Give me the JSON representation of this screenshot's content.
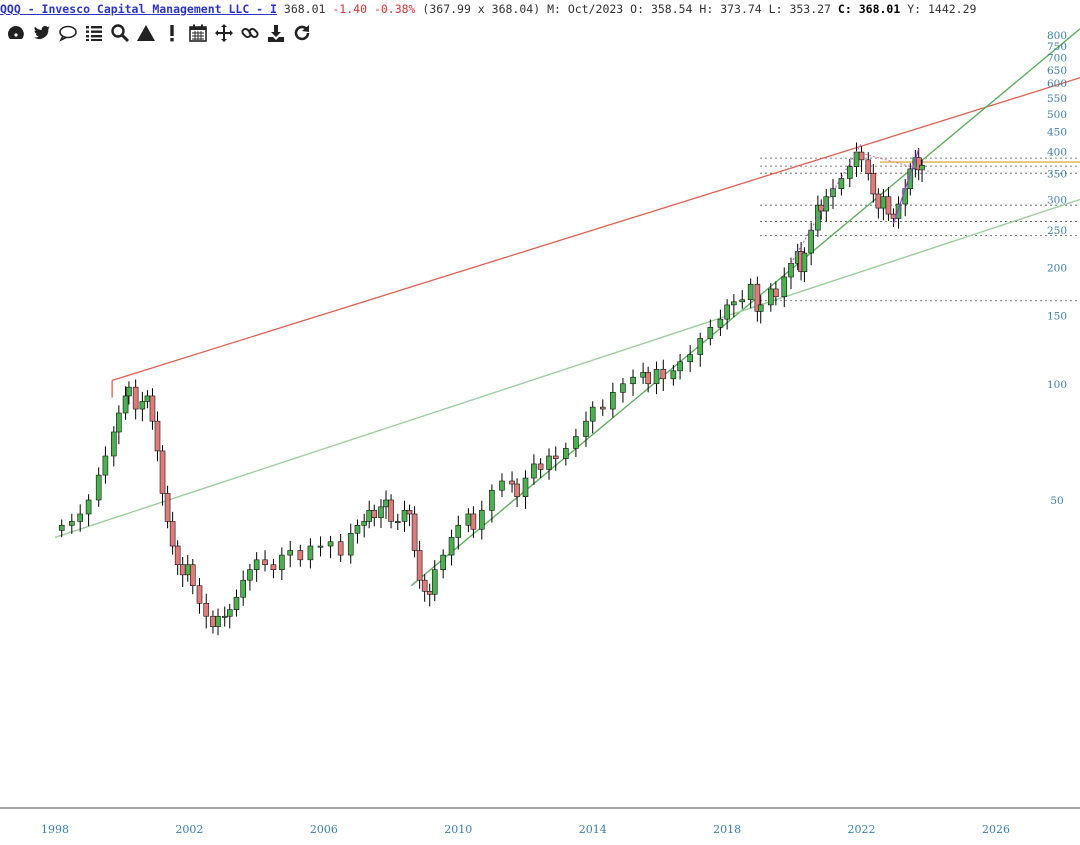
{
  "header": {
    "title": "QQQ - Invesco Capital Management LLC - I",
    "price": "368.01",
    "change": "-1.40",
    "change_pct": "-0.38%",
    "bid_ask": "(367.99 x 368.04)",
    "period": "M: Oct/2023",
    "open": "O: 358.54",
    "high": "H: 373.74",
    "low": "L: 353.27",
    "close_label": "C:",
    "close_value": "368.01",
    "yield": "Y: 1442.29"
  },
  "toolbar": {
    "icons": [
      "dashboard-icon",
      "twitter-icon",
      "comment-icon",
      "list-icon",
      "search-icon",
      "triangle-icon",
      "exclamation-icon",
      "calendar-icon",
      "move-icon",
      "link-icon",
      "download-icon",
      "refresh-icon"
    ]
  },
  "chart_data": {
    "type": "candlestick",
    "scale": "log",
    "grid": false,
    "colors": {
      "up": "#4caf50",
      "down": "#e07b7b",
      "wick": "#000000",
      "axis_labels": "#3a7fb0"
    },
    "y_ticks": [
      50,
      100,
      150,
      200,
      250,
      300,
      350,
      400,
      450,
      500,
      550,
      600,
      650,
      700,
      750,
      800
    ],
    "x_ticks": [
      1998,
      2002,
      2006,
      2010,
      2014,
      2018,
      2022,
      2026
    ],
    "xlim": [
      1998,
      2028.5
    ],
    "series": [
      {
        "name": "QQQ monthly close",
        "points": [
          [
            1998.2,
            43
          ],
          [
            1998.5,
            44
          ],
          [
            1998.75,
            46
          ],
          [
            1999.0,
            50
          ],
          [
            1999.3,
            58
          ],
          [
            1999.5,
            65
          ],
          [
            1999.75,
            75
          ],
          [
            1999.9,
            84
          ],
          [
            2000.1,
            93
          ],
          [
            2000.2,
            98
          ],
          [
            2000.4,
            86
          ],
          [
            2000.6,
            90
          ],
          [
            2000.75,
            93
          ],
          [
            2000.9,
            80
          ],
          [
            2001.05,
            67
          ],
          [
            2001.2,
            52
          ],
          [
            2001.35,
            44
          ],
          [
            2001.5,
            38
          ],
          [
            2001.65,
            34
          ],
          [
            2001.8,
            32
          ],
          [
            2001.95,
            34
          ],
          [
            2002.1,
            30
          ],
          [
            2002.3,
            27
          ],
          [
            2002.5,
            25
          ],
          [
            2002.7,
            23.5
          ],
          [
            2002.85,
            25
          ],
          [
            2003.05,
            25
          ],
          [
            2003.2,
            26
          ],
          [
            2003.4,
            28
          ],
          [
            2003.6,
            31
          ],
          [
            2003.8,
            33
          ],
          [
            2004.0,
            35
          ],
          [
            2004.25,
            34
          ],
          [
            2004.5,
            33
          ],
          [
            2004.75,
            36
          ],
          [
            2005.0,
            37
          ],
          [
            2005.3,
            35
          ],
          [
            2005.6,
            38
          ],
          [
            2005.9,
            38
          ],
          [
            2006.2,
            39
          ],
          [
            2006.5,
            36
          ],
          [
            2006.8,
            41
          ],
          [
            2007.0,
            43
          ],
          [
            2007.2,
            44
          ],
          [
            2007.35,
            47
          ],
          [
            2007.5,
            45
          ],
          [
            2007.7,
            48
          ],
          [
            2007.85,
            50
          ],
          [
            2008.0,
            44
          ],
          [
            2008.2,
            44
          ],
          [
            2008.4,
            47
          ],
          [
            2008.55,
            46
          ],
          [
            2008.7,
            37
          ],
          [
            2008.85,
            31
          ],
          [
            2009.0,
            29
          ],
          [
            2009.15,
            28.5
          ],
          [
            2009.3,
            33
          ],
          [
            2009.55,
            36
          ],
          [
            2009.8,
            40
          ],
          [
            2010.0,
            43
          ],
          [
            2010.3,
            46
          ],
          [
            2010.45,
            42
          ],
          [
            2010.7,
            47
          ],
          [
            2011.0,
            53
          ],
          [
            2011.3,
            56
          ],
          [
            2011.6,
            55
          ],
          [
            2011.75,
            51
          ],
          [
            2012.0,
            57
          ],
          [
            2012.25,
            62
          ],
          [
            2012.45,
            60
          ],
          [
            2012.7,
            65
          ],
          [
            2012.9,
            64
          ],
          [
            2013.2,
            68
          ],
          [
            2013.5,
            73
          ],
          [
            2013.8,
            80
          ],
          [
            2014.0,
            87
          ],
          [
            2014.3,
            86
          ],
          [
            2014.6,
            95
          ],
          [
            2014.9,
            100
          ],
          [
            2015.2,
            104
          ],
          [
            2015.5,
            107
          ],
          [
            2015.65,
            100
          ],
          [
            2015.9,
            109
          ],
          [
            2016.1,
            103
          ],
          [
            2016.4,
            108
          ],
          [
            2016.6,
            114
          ],
          [
            2016.9,
            119
          ],
          [
            2017.2,
            131
          ],
          [
            2017.5,
            140
          ],
          [
            2017.8,
            147
          ],
          [
            2018.0,
            160
          ],
          [
            2018.2,
            163
          ],
          [
            2018.45,
            165
          ],
          [
            2018.7,
            181
          ],
          [
            2018.9,
            154
          ],
          [
            2019.0,
            160
          ],
          [
            2019.3,
            176
          ],
          [
            2019.45,
            168
          ],
          [
            2019.7,
            189
          ],
          [
            2019.9,
            205
          ],
          [
            2020.1,
            220
          ],
          [
            2020.2,
            195
          ],
          [
            2020.3,
            218
          ],
          [
            2020.5,
            250
          ],
          [
            2020.7,
            290
          ],
          [
            2020.8,
            280
          ],
          [
            2020.95,
            305
          ],
          [
            2021.15,
            320
          ],
          [
            2021.4,
            340
          ],
          [
            2021.65,
            365
          ],
          [
            2021.85,
            398
          ],
          [
            2022.0,
            380
          ],
          [
            2022.2,
            350
          ],
          [
            2022.35,
            310
          ],
          [
            2022.5,
            285
          ],
          [
            2022.65,
            305
          ],
          [
            2022.8,
            275
          ],
          [
            2022.95,
            268
          ],
          [
            2023.1,
            292
          ],
          [
            2023.3,
            320
          ],
          [
            2023.45,
            360
          ],
          [
            2023.6,
            385
          ],
          [
            2023.7,
            358
          ],
          [
            2023.8,
            368
          ]
        ]
      }
    ],
    "annotations": {
      "red_trendline": [
        [
          1999.7,
          102
        ],
        [
          2028.5,
          620
        ]
      ],
      "green_trendlines": [
        [
          [
            2008.6,
            30
          ],
          [
            2028.5,
            830
          ]
        ],
        [
          [
            1998.0,
            40
          ],
          [
            2028.5,
            300
          ]
        ]
      ],
      "horizontal_levels": [
        384,
        366,
        351,
        290,
        263,
        242,
        164
      ]
    }
  }
}
